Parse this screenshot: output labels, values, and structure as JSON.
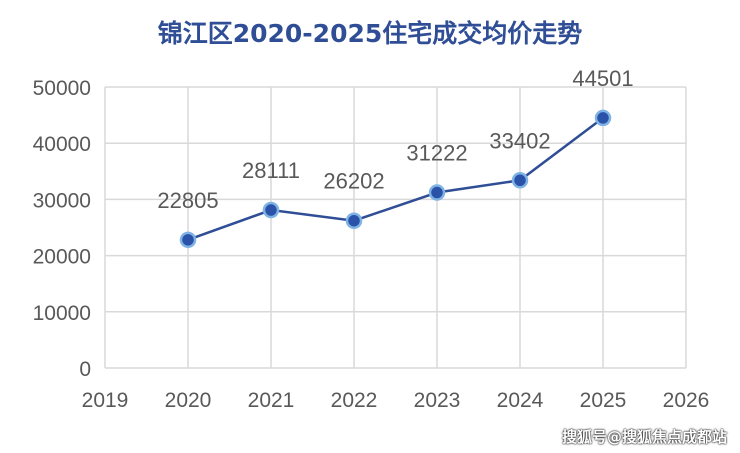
{
  "chart_data": {
    "type": "line",
    "title": "锦江区2020-2025住宅成交均价走势",
    "xlabel": "",
    "ylabel": "",
    "x": [
      2020,
      2021,
      2022,
      2023,
      2024,
      2025
    ],
    "values": [
      22805,
      28111,
      26202,
      31222,
      33402,
      44501
    ],
    "data_labels": [
      "22805",
      "28111",
      "26202",
      "31222",
      "33402",
      "44501"
    ],
    "xlim": [
      2019,
      2026
    ],
    "ylim": [
      0,
      50000
    ],
    "xticks": [
      "2019",
      "2020",
      "2021",
      "2022",
      "2023",
      "2024",
      "2025",
      "2026"
    ],
    "yticks": [
      "0",
      "10000",
      "20000",
      "30000",
      "40000",
      "50000"
    ],
    "grid": true,
    "colors": {
      "line": "#2f4e96",
      "marker": "#2a52a8",
      "marker_edge": "#7fb2e5",
      "grid": "#d9d9d9",
      "text": "#595959",
      "title": "#2f4e96"
    }
  },
  "watermark": "搜狐号@搜狐焦点成都站"
}
